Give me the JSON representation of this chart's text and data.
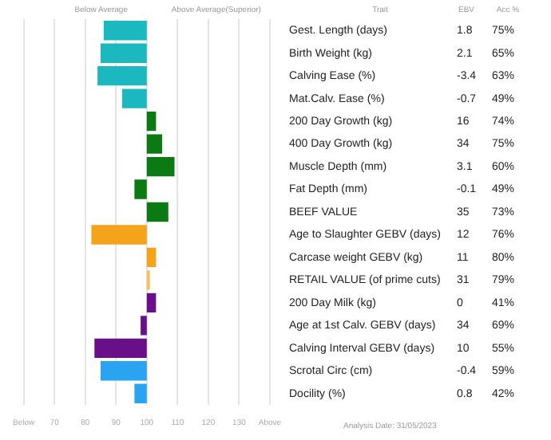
{
  "chart_data": {
    "type": "bar",
    "orientation": "horizontal",
    "categories": [
      "Gest. Length (days)",
      "Birth Weight (kg)",
      "Calving Ease (%)",
      "Mat.Calv. Ease (%)",
      "200 Day Growth (kg)",
      "400 Day Growth (kg)",
      "Muscle Depth (mm)",
      "Fat Depth (mm)",
      "BEEF VALUE",
      "Age to Slaughter GEBV (days)",
      "Carcase weight GEBV (kg)",
      "RETAIL VALUE (of prime cuts)",
      "200 Day Milk (kg)",
      "Age at 1st Calv. GEBV (days)",
      "Calving Interval GEBV (days)",
      "Scrotal Circ (cm)",
      "Docility (%)"
    ],
    "base": [
      100,
      100,
      100,
      100,
      100,
      100,
      100,
      100,
      100,
      100,
      100,
      100,
      100,
      100,
      100,
      100,
      100
    ],
    "values": [
      -14,
      -15,
      -16,
      -8,
      3,
      5,
      9,
      -4,
      7,
      -18,
      3,
      1,
      3,
      -2,
      -17,
      -15,
      -4
    ],
    "colors": [
      "#1bb8bf",
      "#1bb8bf",
      "#1bb8bf",
      "#1bb8bf",
      "#0b7a12",
      "#0b7a12",
      "#0b7a12",
      "#0b7a12",
      "#0b7a12",
      "#f5a31a",
      "#f5a31a",
      "#f5c060",
      "#6a0f8a",
      "#6a0f8a",
      "#6a0f8a",
      "#2aa3f0",
      "#2aa3f0"
    ],
    "xlim": [
      60,
      140
    ],
    "xticks": [
      {
        "value": 60,
        "label": "Below"
      },
      70,
      80,
      90,
      100,
      110,
      120,
      130,
      {
        "value": 140,
        "label": "Above"
      }
    ],
    "grid": "x",
    "legend": false,
    "annotations": [
      "Below Average",
      "Above Average(Superior)",
      "Trait",
      "EBV",
      "Acc %",
      "Analysis Date: 31/05/2023",
      "1.8",
      "75%",
      "2.1",
      "65%",
      "-3.4",
      "63%",
      "-0.7",
      "49%",
      "16",
      "74%",
      "34",
      "75%",
      "3.1",
      "60%",
      "-0.1",
      "49%",
      "35",
      "73%",
      "12",
      "76%",
      "11",
      "80%",
      "31",
      "79%",
      "0",
      "41%",
      "34",
      "69%",
      "10",
      "55%",
      "-0.4",
      "59%",
      "0.8",
      "42%"
    ]
  }
}
